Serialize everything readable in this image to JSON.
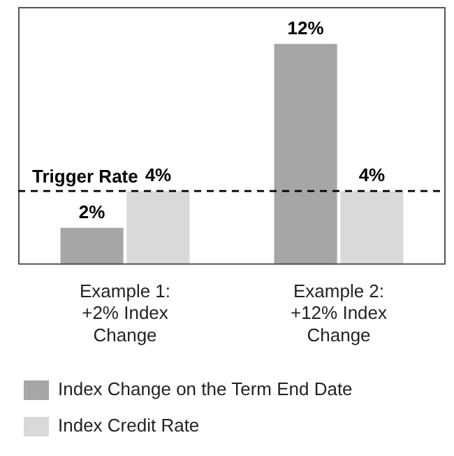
{
  "chart_data": {
    "type": "bar",
    "categories": [
      "Example 1: +2% Index Change",
      "Example 2: +12% Index Change"
    ],
    "series": [
      {
        "name": "Index Change on the Term End Date",
        "color": "#a6a6a6",
        "values": [
          2,
          12
        ],
        "value_labels": [
          "2%",
          "12%"
        ]
      },
      {
        "name": "Index Credit Rate",
        "color": "#d9d9d9",
        "values": [
          4,
          4
        ],
        "value_labels": [
          "4%",
          "4%"
        ]
      }
    ],
    "relative": false,
    "ref_lines": [
      {
        "axis": "y",
        "value": 4,
        "label": "Trigger Rate",
        "line_style": "dashed",
        "color": "#000000"
      }
    ],
    "legend": "bottom left",
    "grid": false
  }
}
